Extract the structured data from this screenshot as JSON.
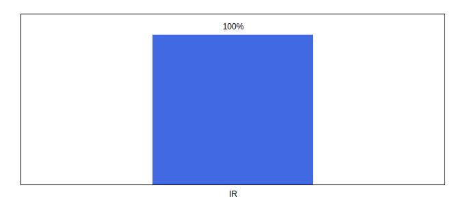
{
  "chart_data": {
    "type": "bar",
    "categories": [
      "IR"
    ],
    "values": [
      100
    ],
    "value_labels": [
      "100%"
    ],
    "data_labels": true,
    "color": "#4169e1",
    "ylim": [
      0,
      114
    ],
    "yticks": [],
    "tick_labels": "x",
    "grid": false
  }
}
